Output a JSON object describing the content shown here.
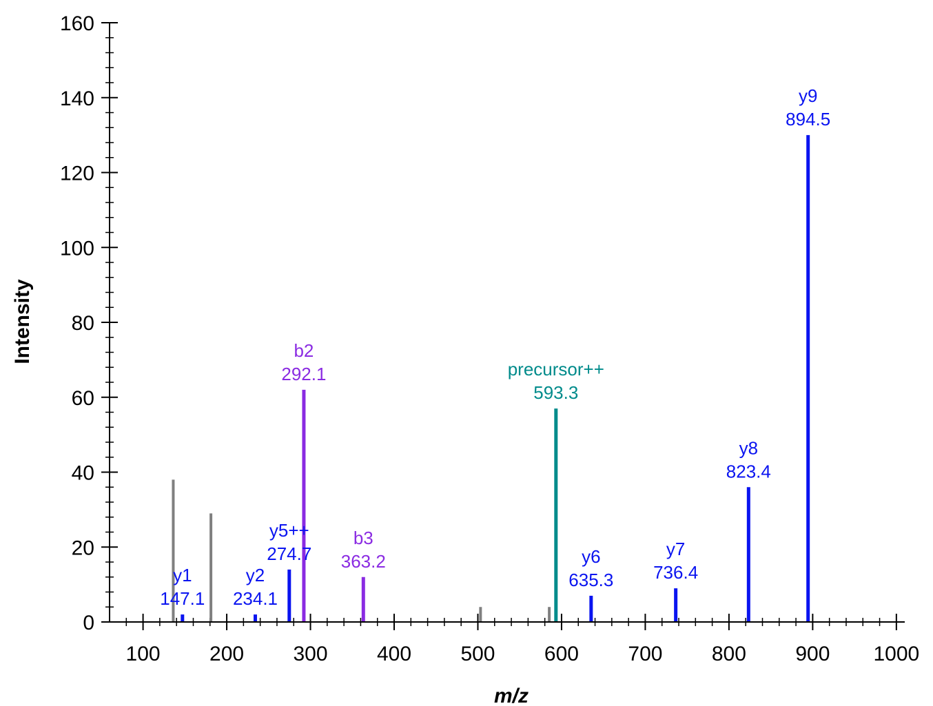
{
  "chart_data": {
    "type": "bar",
    "xlabel": "m/z",
    "ylabel": "Intensity",
    "xlim": [
      60,
      1010
    ],
    "ylim": [
      0,
      160
    ],
    "x_ticks": [
      100,
      200,
      300,
      400,
      500,
      600,
      700,
      800,
      900,
      1000
    ],
    "y_ticks": [
      0,
      20,
      40,
      60,
      80,
      100,
      120,
      140,
      160
    ],
    "colors": {
      "y_ion": "#0a14f0",
      "b_ion": "#8a2be2",
      "precursor": "#008b8b",
      "unmatched": "#808080"
    },
    "peaks": [
      {
        "mz": 136.1,
        "intensity": 38,
        "ion": "unmatched",
        "name": "",
        "mz_label": ""
      },
      {
        "mz": 147.1,
        "intensity": 2,
        "ion": "y_ion",
        "name": "y1",
        "mz_label": "147.1"
      },
      {
        "mz": 181.1,
        "intensity": 29,
        "ion": "unmatched",
        "name": "",
        "mz_label": ""
      },
      {
        "mz": 234.1,
        "intensity": 2,
        "ion": "y_ion",
        "name": "y2",
        "mz_label": "234.1"
      },
      {
        "mz": 274.7,
        "intensity": 14,
        "ion": "y_ion",
        "name": "y5++",
        "mz_label": "274.7"
      },
      {
        "mz": 292.1,
        "intensity": 62,
        "ion": "b_ion",
        "name": "b2",
        "mz_label": "292.1"
      },
      {
        "mz": 363.2,
        "intensity": 12,
        "ion": "b_ion",
        "name": "b3",
        "mz_label": "363.2"
      },
      {
        "mz": 503.2,
        "intensity": 4,
        "ion": "unmatched",
        "name": "",
        "mz_label": ""
      },
      {
        "mz": 585.3,
        "intensity": 4,
        "ion": "unmatched",
        "name": "",
        "mz_label": ""
      },
      {
        "mz": 593.3,
        "intensity": 57,
        "ion": "precursor",
        "name": "precursor++",
        "mz_label": "593.3"
      },
      {
        "mz": 635.3,
        "intensity": 7,
        "ion": "y_ion",
        "name": "y6",
        "mz_label": "635.3"
      },
      {
        "mz": 736.4,
        "intensity": 9,
        "ion": "y_ion",
        "name": "y7",
        "mz_label": "736.4"
      },
      {
        "mz": 823.4,
        "intensity": 36,
        "ion": "y_ion",
        "name": "y8",
        "mz_label": "823.4"
      },
      {
        "mz": 894.5,
        "intensity": 130,
        "ion": "y_ion",
        "name": "y9",
        "mz_label": "894.5"
      }
    ]
  }
}
